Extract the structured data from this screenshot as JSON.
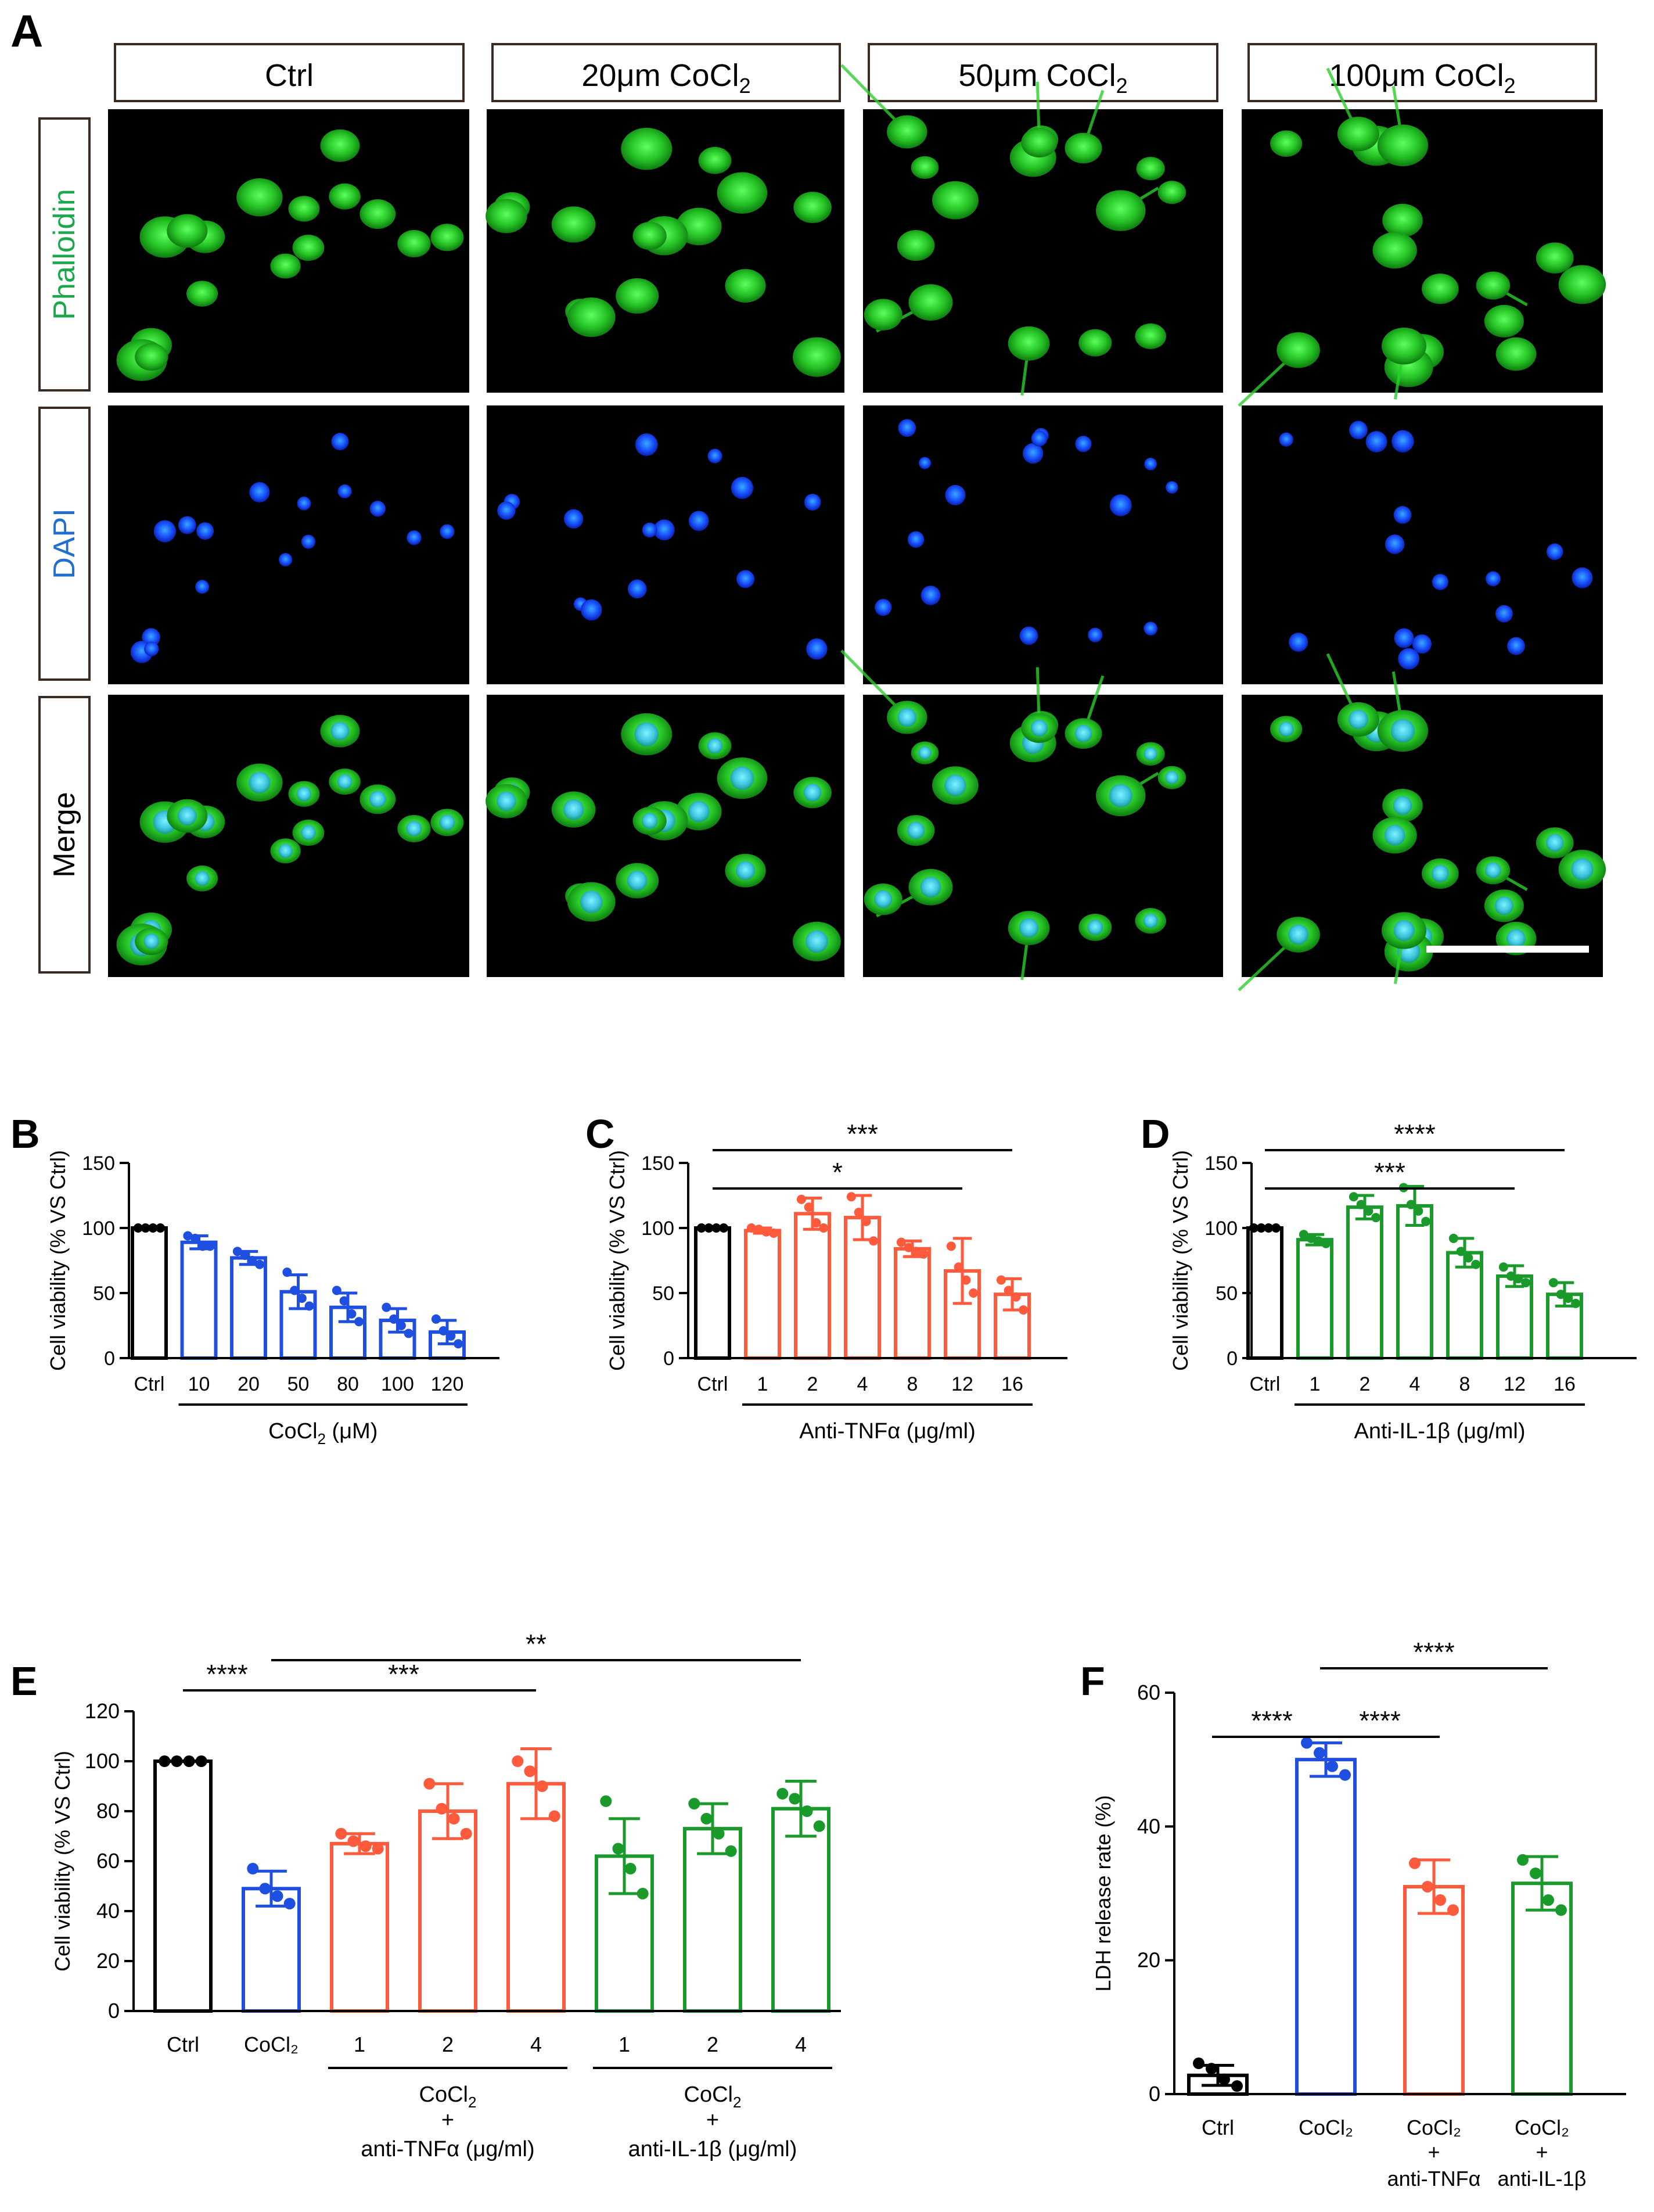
{
  "panel_a": {
    "label": "A",
    "columns": [
      {
        "text": "Ctrl",
        "sub": ""
      },
      {
        "text": "20μm CoCl",
        "sub": "2"
      },
      {
        "text": "50μm CoCl",
        "sub": "2"
      },
      {
        "text": "100μm CoCl",
        "sub": "2"
      }
    ],
    "rows": [
      {
        "label": "Phalloidin",
        "color": "#1aa84a"
      },
      {
        "label": "DAPI",
        "color": "#1f6fd1"
      },
      {
        "label": "Merge",
        "color": "#000000"
      }
    ]
  },
  "colors": {
    "black": "#000000",
    "blue": "#1f4fe0",
    "red": "#ff5a3c",
    "green": "#1a9a2a"
  },
  "chart_data": [
    {
      "panel": "B",
      "type": "bar",
      "ylabel": "Cell viability (% VS Ctrl)",
      "ylim": [
        0,
        150
      ],
      "yticks": [
        0,
        50,
        100,
        150
      ],
      "categories": [
        "Ctrl",
        "10",
        "20",
        "50",
        "80",
        "100",
        "120"
      ],
      "values": [
        100,
        89,
        77,
        51,
        39,
        29,
        20
      ],
      "errors": [
        0,
        5,
        5,
        13,
        11,
        9,
        9
      ],
      "colors": [
        "black",
        "blue",
        "blue",
        "blue",
        "blue",
        "blue",
        "blue"
      ],
      "points": [
        [
          100,
          100,
          100,
          100
        ],
        [
          94,
          92,
          86,
          86
        ],
        [
          82,
          79,
          75,
          72
        ],
        [
          66,
          52,
          46,
          40
        ],
        [
          52,
          44,
          34,
          28
        ],
        [
          39,
          30,
          25,
          19
        ],
        [
          30,
          21,
          17,
          11
        ]
      ],
      "group_labels": [
        {
          "text": "CoCl",
          "sub": "2",
          "after": " (μM)",
          "from": 1,
          "to": 6
        }
      ],
      "sig": []
    },
    {
      "panel": "C",
      "type": "bar",
      "ylabel": "Cell viability (% VS Ctrl)",
      "ylim": [
        0,
        150
      ],
      "yticks": [
        0,
        50,
        100,
        150
      ],
      "categories": [
        "Ctrl",
        "1",
        "2",
        "4",
        "8",
        "12",
        "16"
      ],
      "values": [
        100,
        98,
        111,
        108,
        84,
        67,
        49
      ],
      "errors": [
        0,
        2,
        12,
        17,
        6,
        25,
        12
      ],
      "colors": [
        "black",
        "red",
        "red",
        "red",
        "red",
        "red",
        "red"
      ],
      "points": [
        [
          100,
          100,
          100,
          100
        ],
        [
          100,
          99,
          97,
          96
        ],
        [
          122,
          116,
          104,
          100
        ],
        [
          124,
          112,
          105,
          90
        ],
        [
          89,
          85,
          82,
          80
        ],
        [
          86,
          70,
          60,
          50
        ],
        [
          60,
          52,
          47,
          37
        ]
      ],
      "group_labels": [
        {
          "text": "Anti-TNFα",
          "sub": "",
          "after": " (μg/ml)",
          "from": 1,
          "to": 6
        }
      ],
      "sig": [
        {
          "from": 0,
          "to": 6,
          "label": "***",
          "level": 1
        },
        {
          "from": 0,
          "to": 5,
          "label": "*",
          "level": 0
        }
      ]
    },
    {
      "panel": "D",
      "type": "bar",
      "ylabel": "Cell viability (% VS Ctrl)",
      "ylim": [
        0,
        150
      ],
      "yticks": [
        0,
        50,
        100,
        150
      ],
      "categories": [
        "Ctrl",
        "1",
        "2",
        "4",
        "8",
        "12",
        "16"
      ],
      "values": [
        100,
        91,
        116,
        117,
        81,
        63,
        49
      ],
      "errors": [
        0,
        4,
        9,
        15,
        11,
        8,
        9
      ],
      "colors": [
        "black",
        "green",
        "green",
        "green",
        "green",
        "green",
        "green"
      ],
      "points": [
        [
          100,
          100,
          100,
          100
        ],
        [
          95,
          92,
          90,
          88
        ],
        [
          124,
          118,
          113,
          108
        ],
        [
          131,
          118,
          113,
          105
        ],
        [
          92,
          82,
          77,
          72
        ],
        [
          70,
          63,
          61,
          58
        ],
        [
          58,
          49,
          46,
          42
        ]
      ],
      "group_labels": [
        {
          "text": "Anti-IL-1β",
          "sub": "",
          "after": " (μg/ml)",
          "from": 1,
          "to": 6
        }
      ],
      "sig": [
        {
          "from": 0,
          "to": 6,
          "label": "****",
          "level": 1
        },
        {
          "from": 0,
          "to": 5,
          "label": "***",
          "level": 0
        }
      ]
    },
    {
      "panel": "E",
      "type": "bar",
      "ylabel": "Cell viability (% VS Ctrl)",
      "ylim": [
        0,
        120
      ],
      "yticks": [
        0,
        20,
        40,
        60,
        80,
        100,
        120
      ],
      "categories": [
        "Ctrl",
        "CoCl₂",
        "1",
        "2",
        "4",
        "1",
        "2",
        "4"
      ],
      "values": [
        100,
        49,
        67,
        80,
        91,
        62,
        73,
        81
      ],
      "errors": [
        0,
        7,
        4,
        11,
        14,
        15,
        10,
        11
      ],
      "colors": [
        "black",
        "blue",
        "red",
        "red",
        "red",
        "green",
        "green",
        "green"
      ],
      "points": [
        [
          100,
          100,
          100,
          100
        ],
        [
          57,
          49,
          46,
          43
        ],
        [
          71,
          68,
          66,
          65
        ],
        [
          91,
          81,
          77,
          71
        ],
        [
          100,
          96,
          90,
          78
        ],
        [
          84,
          65,
          57,
          47
        ],
        [
          83,
          77,
          71,
          64
        ],
        [
          87,
          85,
          80,
          74
        ]
      ],
      "group_labels": [
        {
          "text": "CoCl",
          "sub": "2",
          "after": "",
          "line2": "+",
          "line3": "anti-TNFα (μg/ml)",
          "from": 2,
          "to": 4
        },
        {
          "text": "CoCl",
          "sub": "2",
          "after": "",
          "line2": "+",
          "line3": "anti-IL-1β (μg/ml)",
          "from": 5,
          "to": 7
        }
      ],
      "sig": [
        {
          "from": 0,
          "to": 1,
          "label": "****",
          "level": 0
        },
        {
          "from": 1,
          "to": 4,
          "label": "***",
          "level": 0
        },
        {
          "from": 1,
          "to": 7,
          "label": "**",
          "level": 1
        }
      ]
    },
    {
      "panel": "F",
      "type": "bar",
      "ylabel": "LDH release rate (%)",
      "ylim": [
        0,
        60
      ],
      "yticks": [
        0,
        20,
        40,
        60
      ],
      "categories": [
        "Ctrl",
        "CoCl₂",
        "CoCl₂ + anti-TNFα",
        "CoCl₂ + anti-IL-1β"
      ],
      "values": [
        2.8,
        50,
        31,
        31.5
      ],
      "errors": [
        1.5,
        2.5,
        4,
        4
      ],
      "colors": [
        "black",
        "blue",
        "red",
        "green"
      ],
      "points": [
        [
          4.6,
          3.8,
          2.2,
          1.2
        ],
        [
          52.5,
          51,
          49,
          47.7
        ],
        [
          34.5,
          31,
          29,
          27.5
        ],
        [
          35,
          33,
          29,
          27.5
        ]
      ],
      "group_labels": [],
      "sig": [
        {
          "from": 0,
          "to": 1,
          "label": "****",
          "level": 0
        },
        {
          "from": 1,
          "to": 2,
          "label": "****",
          "level": 0
        },
        {
          "from": 1,
          "to": 3,
          "label": "****",
          "level": 1
        }
      ]
    }
  ]
}
